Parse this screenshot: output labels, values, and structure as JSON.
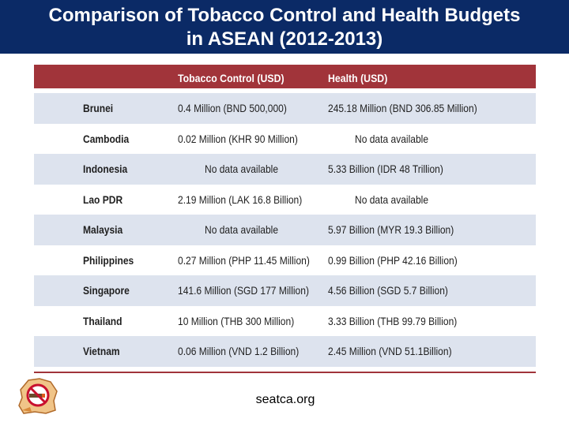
{
  "title": {
    "line1": "Comparison of Tobacco Control and Health Budgets",
    "line2": "in ASEAN (2012-2013)"
  },
  "table": {
    "headers": [
      "",
      "Tobacco Control (USD)",
      "Health (USD)"
    ],
    "rows": [
      {
        "country": "Brunei",
        "tobacco": "0.4 Million (BND 500,000)",
        "health": "245.18 Million (BND 306.85 Million)"
      },
      {
        "country": "Cambodia",
        "tobacco": "0.02 Million (KHR 90 Million)",
        "health": "No data available"
      },
      {
        "country": "Indonesia",
        "tobacco": "No data available",
        "health": "5.33 Billion (IDR 48 Trillion)"
      },
      {
        "country": "Lao PDR",
        "tobacco": "2.19 Million (LAK 16.8 Billion)",
        "health": "No data available"
      },
      {
        "country": "Malaysia",
        "tobacco": "No data available",
        "health": "5.97 Billion (MYR 19.3 Billion)"
      },
      {
        "country": "Philippines",
        "tobacco": "0.27 Million (PHP 11.45 Million)",
        "health": "0.99 Billion (PHP 42.16 Billion)"
      },
      {
        "country": "Singapore",
        "tobacco": "141.6 Million (SGD 177 Million)",
        "health": "4.56 Billion (SGD 5.7 Billion)"
      },
      {
        "country": "Thailand",
        "tobacco": "10 Million (THB 300 Million)",
        "health": "3.33 Billion (THB 99.79 Billion)"
      },
      {
        "country": "Vietnam",
        "tobacco": "0.06 Million (VND 1.2 Billion)",
        "health": "2.45 Million (VND 51.1Billion)"
      }
    ]
  },
  "footer": {
    "source": "seatca.org"
  },
  "logo": {
    "icon": "no-smoking-logo-icon"
  },
  "colors": {
    "title_bg": "#0b2a66",
    "header_bg": "#a1343a",
    "stripe": "#dde3ee"
  }
}
